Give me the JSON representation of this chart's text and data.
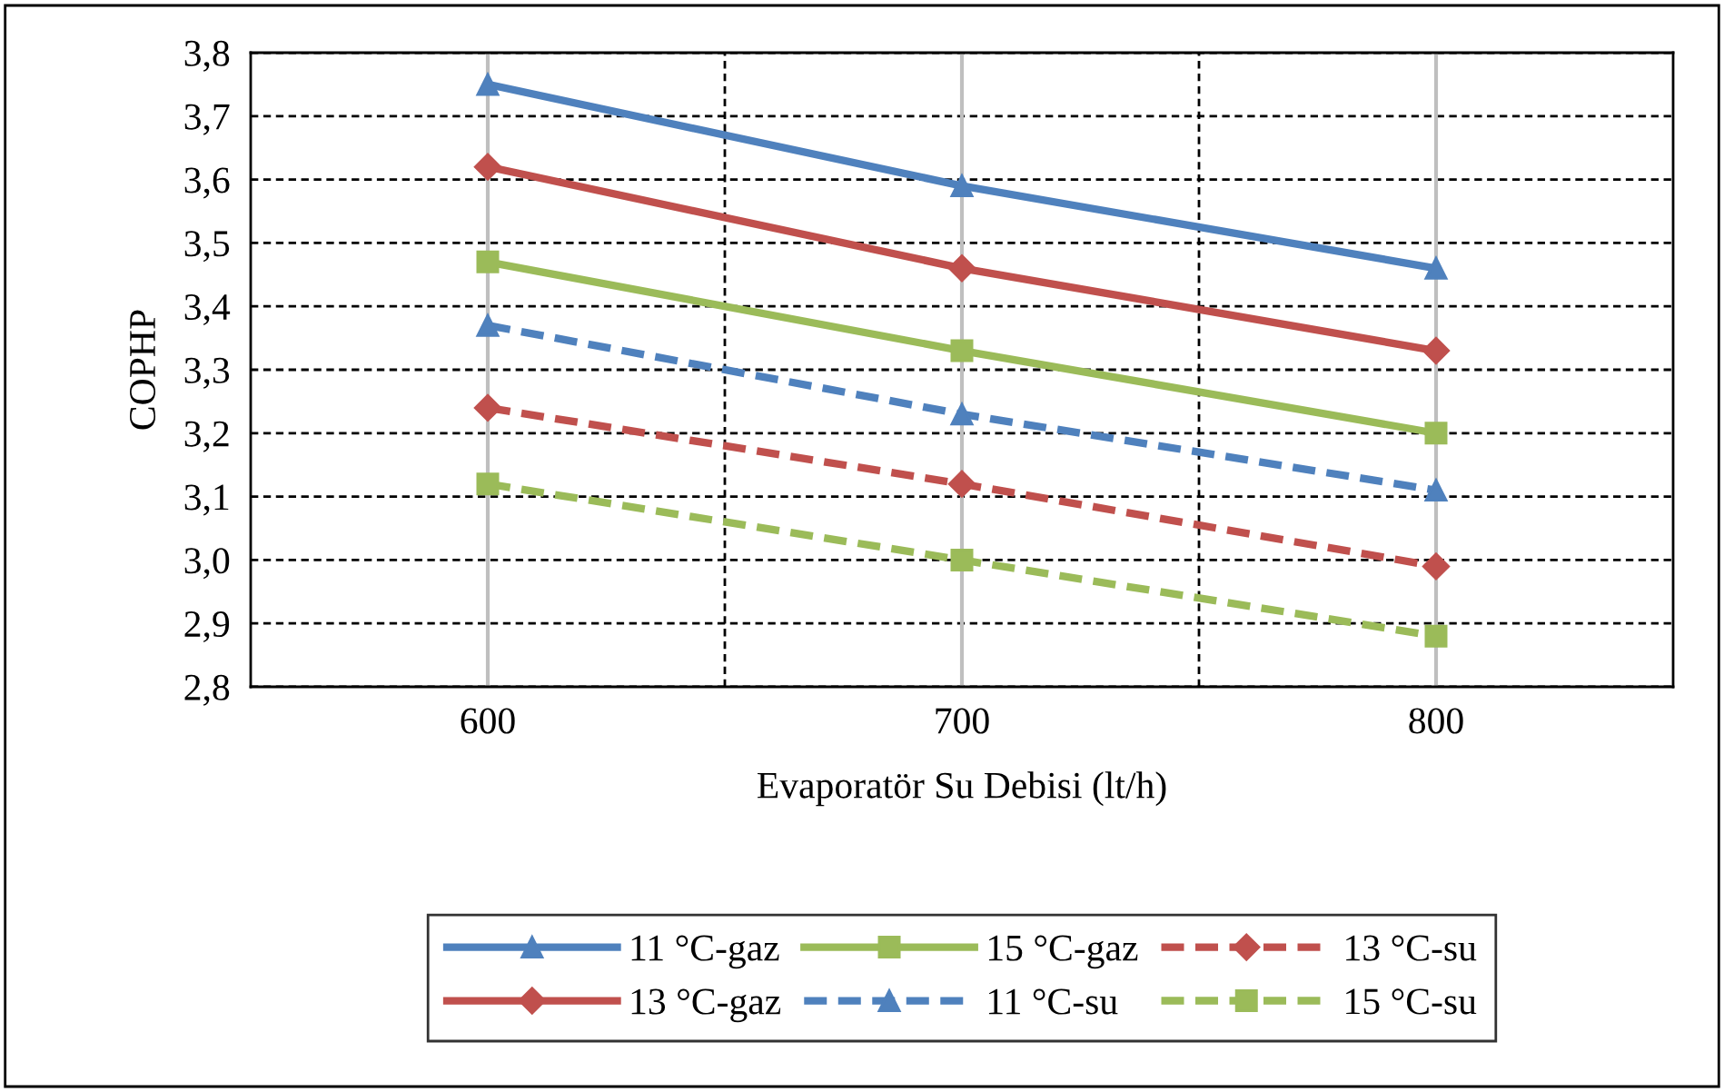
{
  "chart_data": {
    "type": "line",
    "xlabel": "Evaporatör Su Debisi (lt/h)",
    "ylabel": "COPHP",
    "categories": [
      "600",
      "700",
      "800"
    ],
    "ylim": [
      2.8,
      3.8
    ],
    "yticks": [
      {
        "value": 2.8,
        "label": "2,8"
      },
      {
        "value": 2.9,
        "label": "2,9"
      },
      {
        "value": 3.0,
        "label": "3,0"
      },
      {
        "value": 3.1,
        "label": "3,1"
      },
      {
        "value": 3.2,
        "label": "3,2"
      },
      {
        "value": 3.3,
        "label": "3,3"
      },
      {
        "value": 3.4,
        "label": "3,4"
      },
      {
        "value": 3.5,
        "label": "3,5"
      },
      {
        "value": 3.6,
        "label": "3,6"
      },
      {
        "value": 3.7,
        "label": "3,7"
      },
      {
        "value": 3.8,
        "label": "3,8"
      }
    ],
    "grid": true,
    "legend": "bottom",
    "series": [
      {
        "name": "11 °C-gaz",
        "color": "#4f81bd",
        "marker": "triangle",
        "line_style": "solid",
        "values": [
          3.75,
          3.59,
          3.46
        ]
      },
      {
        "name": "13 °C-gaz",
        "color": "#c0504d",
        "marker": "diamond",
        "line_style": "solid",
        "values": [
          3.62,
          3.46,
          3.33
        ]
      },
      {
        "name": "15 °C-gaz",
        "color": "#9bbb59",
        "marker": "square",
        "line_style": "solid",
        "values": [
          3.47,
          3.33,
          3.2
        ]
      },
      {
        "name": "11 °C-su",
        "color": "#4f81bd",
        "marker": "triangle",
        "line_style": "dashed",
        "values": [
          3.37,
          3.23,
          3.11
        ]
      },
      {
        "name": "13 °C-su",
        "color": "#c0504d",
        "marker": "diamond",
        "line_style": "dashed",
        "values": [
          3.24,
          3.12,
          2.99
        ]
      },
      {
        "name": "15 °C-su",
        "color": "#9bbb59",
        "marker": "square",
        "line_style": "dashed",
        "values": [
          3.12,
          3.0,
          2.88
        ]
      }
    ]
  }
}
